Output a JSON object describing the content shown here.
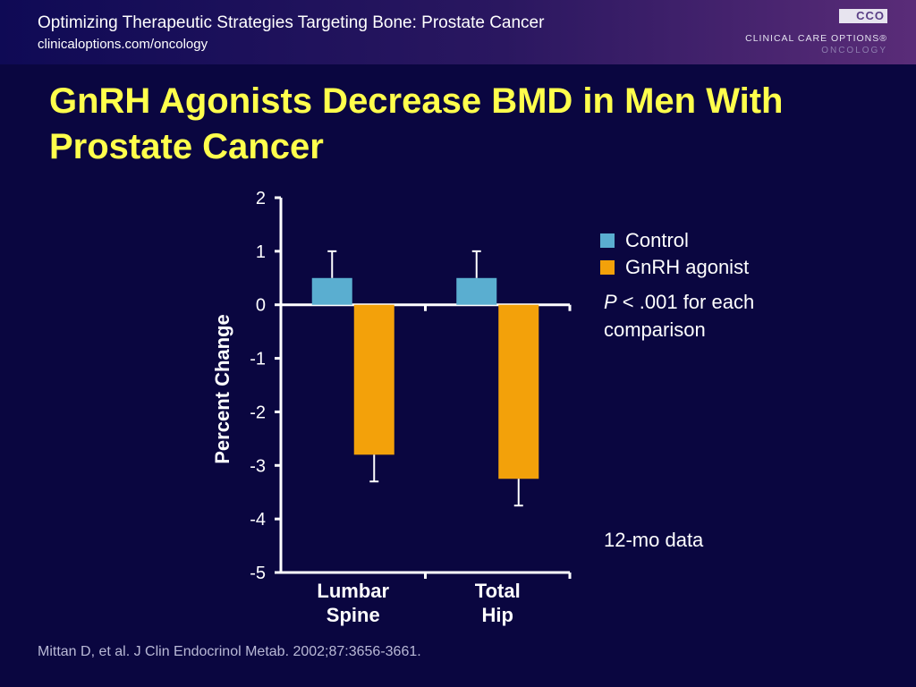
{
  "header": {
    "title": "Optimizing Therapeutic Strategies Targeting Bone: Prostate Cancer",
    "url": "clinicaloptions.com/oncology",
    "logo": {
      "mark": "CCO",
      "name": "CLINICAL CARE OPTIONS®",
      "sub": "ONCOLOGY"
    }
  },
  "slide": {
    "title": "GnRH Agonists Decrease BMD in Men With Prostate Cancer",
    "p_italic": "P",
    "p_rest": " < .001 for each comparison",
    "duration_note": "12-mo data",
    "citation": "Mittan D, et al. J Clin Endocrinol Metab. 2002;87:3656-3661."
  },
  "colors": {
    "background": "#0a0640",
    "title": "#ffff4c",
    "control": "#5aaed0",
    "gnrh": "#f3a10a",
    "axis": "#ffffff"
  },
  "chart_data": {
    "type": "bar",
    "title": "",
    "xlabel": "",
    "ylabel": "Percent Change",
    "ylim": [
      -5,
      2
    ],
    "yticks": [
      2,
      1,
      0,
      -1,
      -2,
      -3,
      -4,
      -5
    ],
    "categories": [
      "Lumbar Spine",
      "Total Hip"
    ],
    "category_lines": [
      [
        "Lumbar",
        "Spine"
      ],
      [
        "Total",
        "Hip"
      ]
    ],
    "series": [
      {
        "name": "Control",
        "color": "#5aaed0",
        "values": [
          0.5,
          0.5
        ],
        "error": [
          0.5,
          0.5
        ]
      },
      {
        "name": "GnRH agonist",
        "color": "#f3a10a",
        "values": [
          -2.8,
          -3.25
        ],
        "error": [
          0.5,
          0.5
        ]
      }
    ],
    "grid": false,
    "legend": "right"
  }
}
